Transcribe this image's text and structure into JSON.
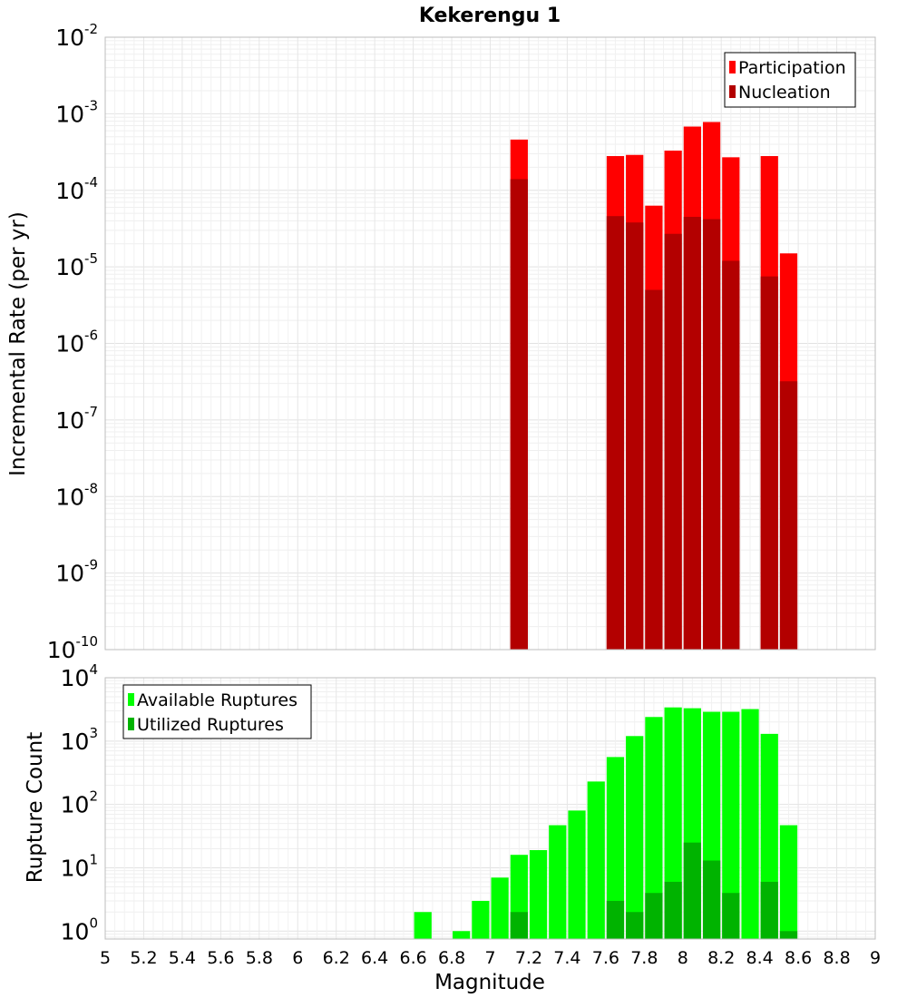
{
  "chart_data": [
    {
      "type": "bar",
      "title": "Kekerengu 1",
      "xlabel": "",
      "ylabel": "Incremental Rate (per yr)",
      "x_scale": "linear",
      "y_scale": "log",
      "xlim": [
        5,
        9
      ],
      "ylim": [
        1e-10,
        0.01
      ],
      "y_ticks": [
        {
          "base": "10",
          "exp": "-10"
        },
        {
          "base": "10",
          "exp": "-9"
        },
        {
          "base": "10",
          "exp": "-8"
        },
        {
          "base": "10",
          "exp": "-7"
        },
        {
          "base": "10",
          "exp": "-6"
        },
        {
          "base": "10",
          "exp": "-5"
        },
        {
          "base": "10",
          "exp": "-4"
        },
        {
          "base": "10",
          "exp": "-3"
        },
        {
          "base": "10",
          "exp": "-2"
        }
      ],
      "grid": true,
      "legend": "top-right",
      "series": [
        {
          "name": "Participation",
          "color": "#ff0000",
          "points": [
            {
              "x": 7.15,
              "y": 0.00046
            },
            {
              "x": 7.65,
              "y": 0.00028
            },
            {
              "x": 7.75,
              "y": 0.00029
            },
            {
              "x": 7.85,
              "y": 6.3e-05
            },
            {
              "x": 7.95,
              "y": 0.00033
            },
            {
              "x": 8.05,
              "y": 0.00068
            },
            {
              "x": 8.15,
              "y": 0.00078
            },
            {
              "x": 8.25,
              "y": 0.00027
            },
            {
              "x": 8.45,
              "y": 0.00028
            },
            {
              "x": 8.55,
              "y": 1.5e-05
            }
          ]
        },
        {
          "name": "Nucleation",
          "color": "#b30000",
          "points": [
            {
              "x": 7.15,
              "y": 0.00014
            },
            {
              "x": 7.65,
              "y": 4.6e-05
            },
            {
              "x": 7.75,
              "y": 3.8e-05
            },
            {
              "x": 7.85,
              "y": 5e-06
            },
            {
              "x": 7.95,
              "y": 2.7e-05
            },
            {
              "x": 8.05,
              "y": 4.5e-05
            },
            {
              "x": 8.15,
              "y": 4.2e-05
            },
            {
              "x": 8.25,
              "y": 1.2e-05
            },
            {
              "x": 8.45,
              "y": 7.5e-06
            },
            {
              "x": 8.55,
              "y": 3.2e-07
            }
          ]
        }
      ]
    },
    {
      "type": "bar",
      "title": "",
      "xlabel": "Magnitude",
      "ylabel": "Rupture Count",
      "x_scale": "linear",
      "y_scale": "log",
      "xlim": [
        5,
        9
      ],
      "ylim": [
        0.75,
        10000.0
      ],
      "x_ticks": [
        "5",
        "5.2",
        "5.4",
        "5.6",
        "5.8",
        "6",
        "6.2",
        "6.4",
        "6.6",
        "6.8",
        "7",
        "7.2",
        "7.4",
        "7.6",
        "7.8",
        "8",
        "8.2",
        "8.4",
        "8.6",
        "8.8",
        "9"
      ],
      "y_ticks": [
        {
          "base": "10",
          "exp": "0"
        },
        {
          "base": "10",
          "exp": "1"
        },
        {
          "base": "10",
          "exp": "2"
        },
        {
          "base": "10",
          "exp": "3"
        },
        {
          "base": "10",
          "exp": "4"
        }
      ],
      "grid": true,
      "legend": "top-left",
      "series": [
        {
          "name": "Available Ruptures",
          "color": "#00ff00",
          "points": [
            {
              "x": 6.65,
              "y": 2
            },
            {
              "x": 6.85,
              "y": 1
            },
            {
              "x": 6.95,
              "y": 3
            },
            {
              "x": 7.05,
              "y": 7
            },
            {
              "x": 7.15,
              "y": 16
            },
            {
              "x": 7.25,
              "y": 19
            },
            {
              "x": 7.35,
              "y": 47
            },
            {
              "x": 7.45,
              "y": 80
            },
            {
              "x": 7.55,
              "y": 230
            },
            {
              "x": 7.65,
              "y": 560
            },
            {
              "x": 7.75,
              "y": 1200
            },
            {
              "x": 7.85,
              "y": 2400
            },
            {
              "x": 7.95,
              "y": 3400
            },
            {
              "x": 8.05,
              "y": 3300
            },
            {
              "x": 8.15,
              "y": 2900
            },
            {
              "x": 8.25,
              "y": 2900
            },
            {
              "x": 8.35,
              "y": 3200
            },
            {
              "x": 8.45,
              "y": 1300
            },
            {
              "x": 8.55,
              "y": 47
            }
          ]
        },
        {
          "name": "Utilized Ruptures",
          "color": "#00b300",
          "points": [
            {
              "x": 7.15,
              "y": 2
            },
            {
              "x": 7.65,
              "y": 3
            },
            {
              "x": 7.75,
              "y": 2
            },
            {
              "x": 7.85,
              "y": 4
            },
            {
              "x": 7.95,
              "y": 6
            },
            {
              "x": 8.05,
              "y": 25
            },
            {
              "x": 8.15,
              "y": 13
            },
            {
              "x": 8.25,
              "y": 4
            },
            {
              "x": 8.45,
              "y": 6
            },
            {
              "x": 8.55,
              "y": 1
            }
          ]
        }
      ]
    }
  ]
}
